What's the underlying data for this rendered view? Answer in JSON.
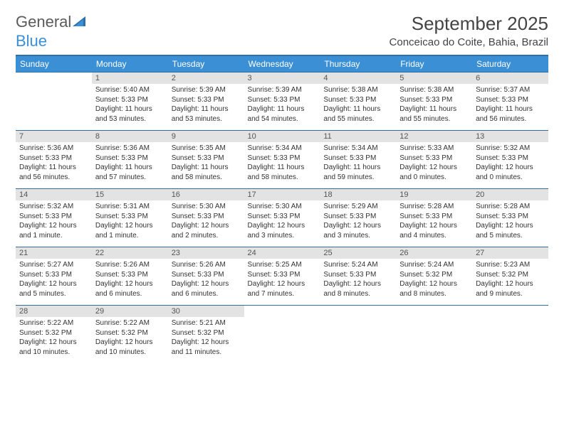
{
  "logo": {
    "text1": "General",
    "text2": "Blue"
  },
  "title": "September 2025",
  "location": "Conceicao do Coite, Bahia, Brazil",
  "colors": {
    "header_bg": "#3b8fd4",
    "header_text": "#ffffff",
    "border": "#2f6fa5",
    "daynum_bg": "#e3e3e3",
    "text": "#333333",
    "logo_gray": "#5a5a5a",
    "logo_blue": "#3a8fd9"
  },
  "weekdays": [
    "Sunday",
    "Monday",
    "Tuesday",
    "Wednesday",
    "Thursday",
    "Friday",
    "Saturday"
  ],
  "weeks": [
    [
      null,
      {
        "n": "1",
        "sr": "5:40 AM",
        "ss": "5:33 PM",
        "dl": "11 hours and 53 minutes."
      },
      {
        "n": "2",
        "sr": "5:39 AM",
        "ss": "5:33 PM",
        "dl": "11 hours and 53 minutes."
      },
      {
        "n": "3",
        "sr": "5:39 AM",
        "ss": "5:33 PM",
        "dl": "11 hours and 54 minutes."
      },
      {
        "n": "4",
        "sr": "5:38 AM",
        "ss": "5:33 PM",
        "dl": "11 hours and 55 minutes."
      },
      {
        "n": "5",
        "sr": "5:38 AM",
        "ss": "5:33 PM",
        "dl": "11 hours and 55 minutes."
      },
      {
        "n": "6",
        "sr": "5:37 AM",
        "ss": "5:33 PM",
        "dl": "11 hours and 56 minutes."
      }
    ],
    [
      {
        "n": "7",
        "sr": "5:36 AM",
        "ss": "5:33 PM",
        "dl": "11 hours and 56 minutes."
      },
      {
        "n": "8",
        "sr": "5:36 AM",
        "ss": "5:33 PM",
        "dl": "11 hours and 57 minutes."
      },
      {
        "n": "9",
        "sr": "5:35 AM",
        "ss": "5:33 PM",
        "dl": "11 hours and 58 minutes."
      },
      {
        "n": "10",
        "sr": "5:34 AM",
        "ss": "5:33 PM",
        "dl": "11 hours and 58 minutes."
      },
      {
        "n": "11",
        "sr": "5:34 AM",
        "ss": "5:33 PM",
        "dl": "11 hours and 59 minutes."
      },
      {
        "n": "12",
        "sr": "5:33 AM",
        "ss": "5:33 PM",
        "dl": "12 hours and 0 minutes."
      },
      {
        "n": "13",
        "sr": "5:32 AM",
        "ss": "5:33 PM",
        "dl": "12 hours and 0 minutes."
      }
    ],
    [
      {
        "n": "14",
        "sr": "5:32 AM",
        "ss": "5:33 PM",
        "dl": "12 hours and 1 minute."
      },
      {
        "n": "15",
        "sr": "5:31 AM",
        "ss": "5:33 PM",
        "dl": "12 hours and 1 minute."
      },
      {
        "n": "16",
        "sr": "5:30 AM",
        "ss": "5:33 PM",
        "dl": "12 hours and 2 minutes."
      },
      {
        "n": "17",
        "sr": "5:30 AM",
        "ss": "5:33 PM",
        "dl": "12 hours and 3 minutes."
      },
      {
        "n": "18",
        "sr": "5:29 AM",
        "ss": "5:33 PM",
        "dl": "12 hours and 3 minutes."
      },
      {
        "n": "19",
        "sr": "5:28 AM",
        "ss": "5:33 PM",
        "dl": "12 hours and 4 minutes."
      },
      {
        "n": "20",
        "sr": "5:28 AM",
        "ss": "5:33 PM",
        "dl": "12 hours and 5 minutes."
      }
    ],
    [
      {
        "n": "21",
        "sr": "5:27 AM",
        "ss": "5:33 PM",
        "dl": "12 hours and 5 minutes."
      },
      {
        "n": "22",
        "sr": "5:26 AM",
        "ss": "5:33 PM",
        "dl": "12 hours and 6 minutes."
      },
      {
        "n": "23",
        "sr": "5:26 AM",
        "ss": "5:33 PM",
        "dl": "12 hours and 6 minutes."
      },
      {
        "n": "24",
        "sr": "5:25 AM",
        "ss": "5:33 PM",
        "dl": "12 hours and 7 minutes."
      },
      {
        "n": "25",
        "sr": "5:24 AM",
        "ss": "5:33 PM",
        "dl": "12 hours and 8 minutes."
      },
      {
        "n": "26",
        "sr": "5:24 AM",
        "ss": "5:32 PM",
        "dl": "12 hours and 8 minutes."
      },
      {
        "n": "27",
        "sr": "5:23 AM",
        "ss": "5:32 PM",
        "dl": "12 hours and 9 minutes."
      }
    ],
    [
      {
        "n": "28",
        "sr": "5:22 AM",
        "ss": "5:32 PM",
        "dl": "12 hours and 10 minutes."
      },
      {
        "n": "29",
        "sr": "5:22 AM",
        "ss": "5:32 PM",
        "dl": "12 hours and 10 minutes."
      },
      {
        "n": "30",
        "sr": "5:21 AM",
        "ss": "5:32 PM",
        "dl": "12 hours and 11 minutes."
      },
      null,
      null,
      null,
      null
    ]
  ],
  "labels": {
    "sunrise": "Sunrise:",
    "sunset": "Sunset:",
    "daylight": "Daylight:"
  }
}
